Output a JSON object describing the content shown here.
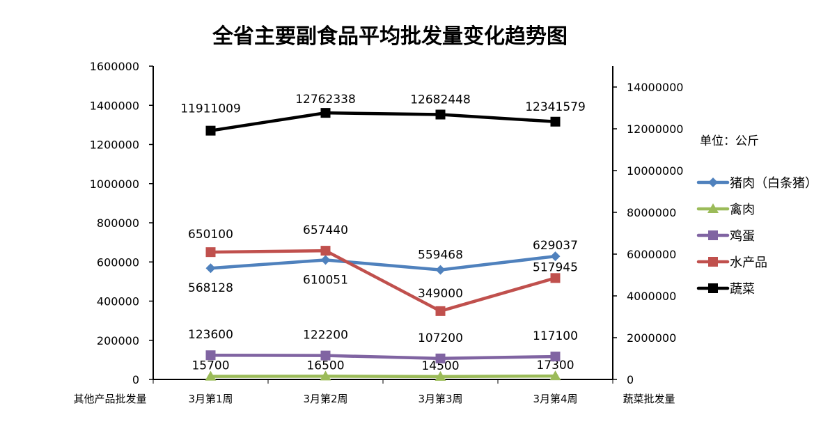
{
  "chart_data": {
    "type": "line",
    "title": "全省主要副食品平均批发量变化趋势图",
    "categories": [
      "3月第1周",
      "3月第2周",
      "3月第3周",
      "3月第4周"
    ],
    "y_left": {
      "label": "其他产品批发量",
      "range": [
        0,
        1600000
      ],
      "ticks": [
        0,
        200000,
        400000,
        600000,
        800000,
        1000000,
        1200000,
        1400000,
        1600000
      ]
    },
    "y_right": {
      "label": "蔬菜批发量",
      "range": [
        0,
        15000000
      ],
      "ticks": [
        0,
        2000000,
        4000000,
        6000000,
        8000000,
        10000000,
        12000000,
        14000000
      ]
    },
    "unit_note": "单位：公斤",
    "grid": false,
    "legend_position": "right",
    "series": [
      {
        "name": "猪肉（白条猪）",
        "axis": "left",
        "color": "#4f81bd",
        "marker": "diamond",
        "values": [
          568128,
          610051,
          559468,
          629037
        ]
      },
      {
        "name": "禽肉",
        "axis": "left",
        "color": "#9bbb59",
        "marker": "triangle",
        "values": [
          15700,
          16500,
          14500,
          17300
        ]
      },
      {
        "name": "鸡蛋",
        "axis": "left",
        "color": "#8064a2",
        "marker": "square",
        "values": [
          123600,
          122200,
          107200,
          117100
        ]
      },
      {
        "name": "水产品",
        "axis": "left",
        "color": "#c0504d",
        "marker": "square",
        "values": [
          650100,
          657440,
          349000,
          517945
        ]
      },
      {
        "name": "蔬菜",
        "axis": "right",
        "color": "#000000",
        "marker": "square",
        "values": [
          11911009,
          12762338,
          12682448,
          12341579
        ]
      }
    ]
  }
}
